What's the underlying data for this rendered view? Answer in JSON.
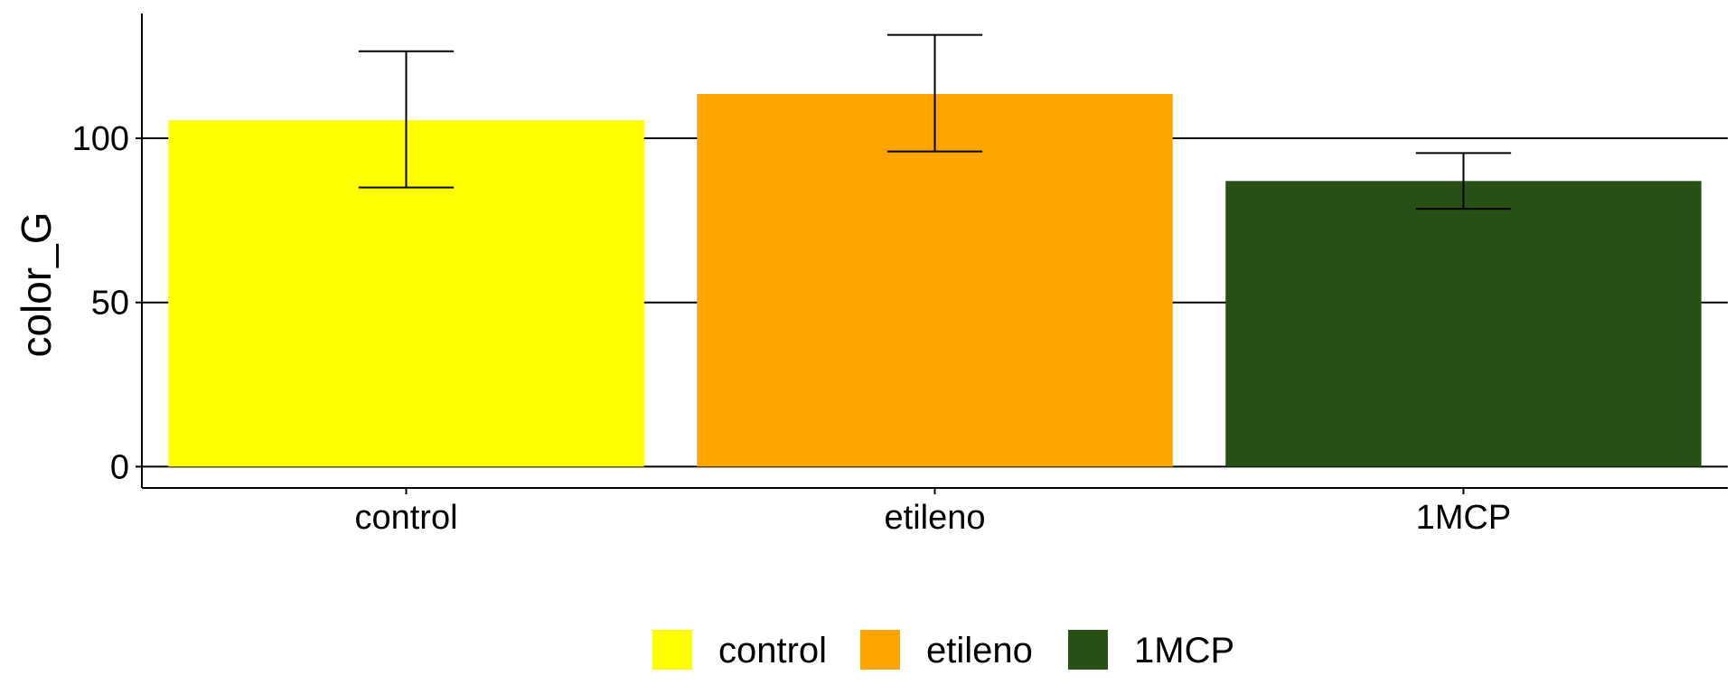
{
  "chart_data": {
    "type": "bar",
    "title": "",
    "xlabel": "",
    "ylabel": "color_G",
    "categories": [
      "control",
      "etileno",
      "1MCP"
    ],
    "values": [
      105.5,
      113.5,
      87.0
    ],
    "error_low": [
      85.0,
      96.0,
      78.5
    ],
    "error_high": [
      126.5,
      131.5,
      95.5
    ],
    "colors": [
      "#FFFF00",
      "#FFA500",
      "#285015"
    ],
    "ylim": [
      -6.5,
      138
    ],
    "yticks": [
      0,
      50,
      100
    ],
    "grid": "major horizontal",
    "legend": {
      "position": "bottom",
      "entries": [
        "control",
        "etileno",
        "1MCP"
      ]
    }
  }
}
